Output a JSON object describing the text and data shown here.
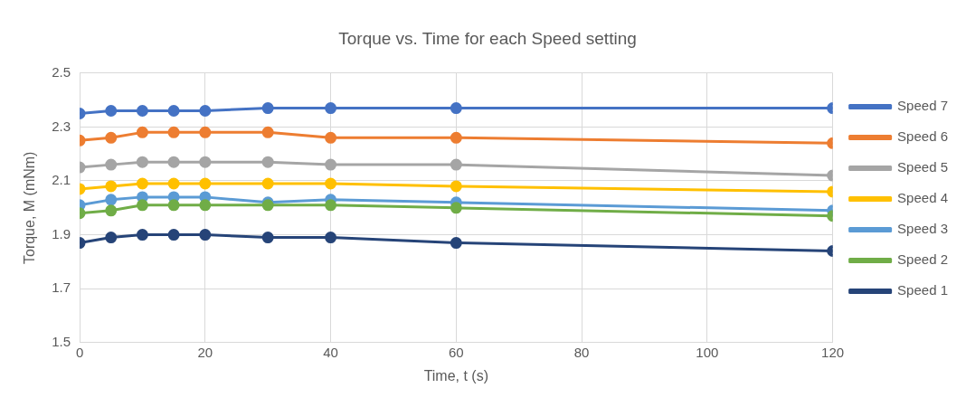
{
  "chart_data": {
    "type": "line",
    "title": "Torque vs. Time for each Speed setting",
    "xlabel": "Time, t (s)",
    "ylabel": "Torque, M (mNm)",
    "x": [
      0,
      5,
      10,
      15,
      20,
      30,
      40,
      60,
      120
    ],
    "series": [
      {
        "name": "Speed 7",
        "color": "#4472c4",
        "values": [
          2.35,
          2.36,
          2.36,
          2.36,
          2.36,
          2.37,
          2.37,
          2.37,
          2.37
        ]
      },
      {
        "name": "Speed 6",
        "color": "#ed7d31",
        "values": [
          2.25,
          2.26,
          2.28,
          2.28,
          2.28,
          2.28,
          2.26,
          2.26,
          2.24
        ]
      },
      {
        "name": "Speed 5",
        "color": "#a5a5a5",
        "values": [
          2.15,
          2.16,
          2.17,
          2.17,
          2.17,
          2.17,
          2.16,
          2.16,
          2.12
        ]
      },
      {
        "name": "Speed 4",
        "color": "#ffc000",
        "values": [
          2.07,
          2.08,
          2.09,
          2.09,
          2.09,
          2.09,
          2.09,
          2.08,
          2.06
        ]
      },
      {
        "name": "Speed 3",
        "color": "#5b9bd5",
        "values": [
          2.01,
          2.03,
          2.04,
          2.04,
          2.04,
          2.02,
          2.03,
          2.02,
          1.99
        ]
      },
      {
        "name": "Speed 2",
        "color": "#70ad47",
        "values": [
          1.98,
          1.99,
          2.01,
          2.01,
          2.01,
          2.01,
          2.01,
          2.0,
          1.97
        ]
      },
      {
        "name": "Speed 1",
        "color": "#264478",
        "values": [
          1.87,
          1.89,
          1.9,
          1.9,
          1.9,
          1.89,
          1.89,
          1.87,
          1.84
        ]
      }
    ],
    "xlim": [
      0,
      120
    ],
    "xticks": [
      0,
      20,
      40,
      60,
      80,
      100,
      120
    ],
    "ylim": [
      1.5,
      2.5
    ],
    "yticks": [
      1.5,
      1.7,
      1.9,
      2.1,
      2.3,
      2.5
    ],
    "grid": true,
    "legend": "right",
    "marker": "circle",
    "line_style": "solid"
  }
}
